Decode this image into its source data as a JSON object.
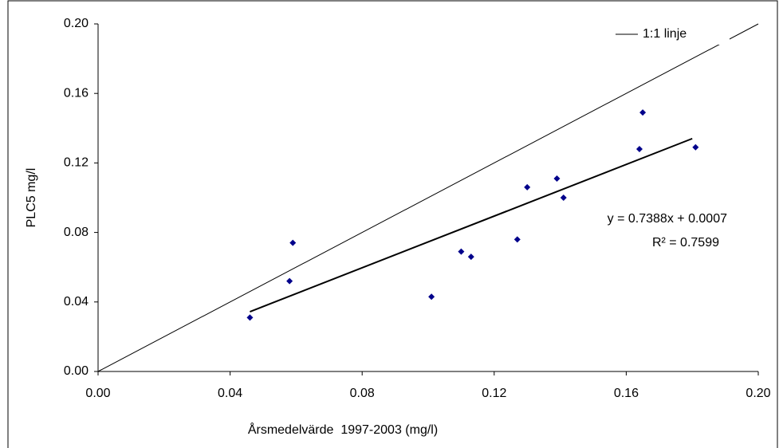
{
  "chart_data": {
    "type": "scatter",
    "xlabel": "Årsmedelvärde  1997-2003 (mg/l)",
    "ylabel": "PLC5 mg/l",
    "xlim": [
      0,
      0.2
    ],
    "ylim": [
      0,
      0.2
    ],
    "xticks": [
      {
        "value": 0,
        "label": "0.00"
      },
      0.04,
      0.08,
      0.12,
      0.16,
      {
        "value": 0.2,
        "label": "0.20"
      }
    ],
    "yticks": [
      {
        "value": 0,
        "label": "0.00"
      },
      0.04,
      0.08,
      0.12,
      0.16,
      {
        "value": 0.2,
        "label": "0.20"
      }
    ],
    "series": [
      {
        "color": "#00008b",
        "x": [
          0.046,
          0.058,
          0.059,
          0.101,
          0.11,
          0.113,
          0.127,
          0.13,
          0.139,
          0.141,
          0.164,
          0.165,
          0.181
        ],
        "values": [
          0.031,
          0.052,
          0.074,
          0.043,
          0.069,
          0.066,
          0.076,
          0.106,
          0.111,
          0.1,
          0.128,
          0.149,
          0.129
        ]
      }
    ],
    "trendline": {
      "x": [
        0.046,
        0.18
      ],
      "values": [
        0.0344,
        0.134
      ],
      "color": "#000000"
    },
    "reference_line": {
      "name": "1:1 linje",
      "x": [
        0,
        0.2
      ],
      "values": [
        0,
        0.2
      ],
      "color": "#000000"
    },
    "annotations": [
      "y = 0.7388x + 0.0007",
      "R² = 0.7599"
    ]
  }
}
